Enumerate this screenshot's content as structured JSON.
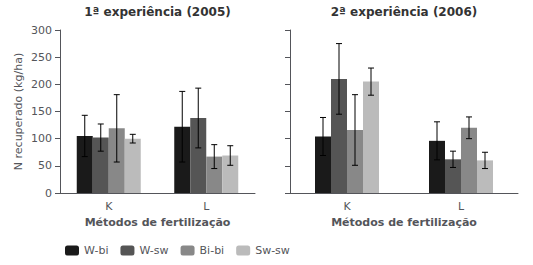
{
  "chart_data": [
    {
      "type": "bar",
      "title": "1ª experiência (2005)",
      "xlabel": "Métodos de fertilização",
      "ylabel": "N recuperado (kg/ha)",
      "categories": [
        "K",
        "L"
      ],
      "series": [
        {
          "name": "W-bi",
          "color": "#1a1a1a",
          "values": [
            105,
            122
          ],
          "errors": [
            38,
            65
          ]
        },
        {
          "name": "W-sw",
          "color": "#555555",
          "values": [
            102,
            138
          ],
          "errors": [
            25,
            55
          ]
        },
        {
          "name": "Bi-bi",
          "color": "#888888",
          "values": [
            119,
            67
          ],
          "errors": [
            62,
            22
          ]
        },
        {
          "name": "Sw-sw",
          "color": "#bbbbbb",
          "values": [
            100,
            69
          ],
          "errors": [
            8,
            18
          ]
        }
      ],
      "ylim": [
        0,
        300
      ],
      "yticks": [
        0,
        50,
        100,
        150,
        200,
        250,
        300
      ],
      "grid": false,
      "legend": "lower left"
    },
    {
      "type": "bar",
      "title": "2ª experiência (2006)",
      "xlabel": "Métodos de fertilização",
      "categories": [
        "K",
        "L"
      ],
      "series": [
        {
          "name": "W-bi",
          "color": "#1a1a1a",
          "values": [
            104,
            96
          ],
          "errors": [
            35,
            35
          ]
        },
        {
          "name": "W-sw",
          "color": "#555555",
          "values": [
            210,
            62
          ],
          "errors": [
            65,
            15
          ]
        },
        {
          "name": "Bi-bi",
          "color": "#888888",
          "values": [
            116,
            120
          ],
          "errors": [
            65,
            20
          ]
        },
        {
          "name": "Sw-sw",
          "color": "#bbbbbb",
          "values": [
            205,
            60
          ],
          "errors": [
            25,
            15
          ]
        }
      ],
      "ylim": [
        0,
        300
      ],
      "yticks": [
        0,
        50,
        100,
        150,
        200,
        250,
        300
      ],
      "grid": false,
      "tick_labels": "x"
    }
  ]
}
